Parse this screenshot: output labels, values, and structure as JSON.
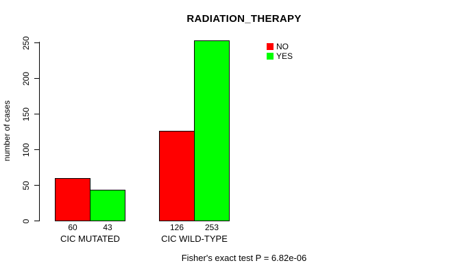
{
  "title": "RADIATION_THERAPY",
  "y_axis": {
    "label": "number of cases",
    "ticks": [
      0,
      50,
      100,
      150,
      200,
      250
    ]
  },
  "legend": {
    "items": [
      {
        "label": "NO",
        "color": "#ff0000"
      },
      {
        "label": "YES",
        "color": "#00ff00"
      }
    ]
  },
  "caption": "Fisher's exact test P = 6.82e-06",
  "chart_data": {
    "type": "bar",
    "title": "RADIATION_THERAPY",
    "xlabel": "",
    "ylabel": "number of cases",
    "categories": [
      "CIC MUTATED",
      "CIC WILD-TYPE"
    ],
    "series": [
      {
        "name": "NO",
        "color": "#ff0000",
        "values": [
          60,
          126
        ]
      },
      {
        "name": "YES",
        "color": "#00ff00",
        "values": [
          43,
          253
        ]
      }
    ],
    "bar_value_labels": [
      [
        "60",
        "43"
      ],
      [
        "126",
        "253"
      ]
    ],
    "ylim": [
      0,
      250
    ],
    "yticks": [
      0,
      50,
      100,
      150,
      200,
      250
    ],
    "grid": false,
    "legend_position": "top-right",
    "annotation": "Fisher's exact test P = 6.82e-06"
  }
}
